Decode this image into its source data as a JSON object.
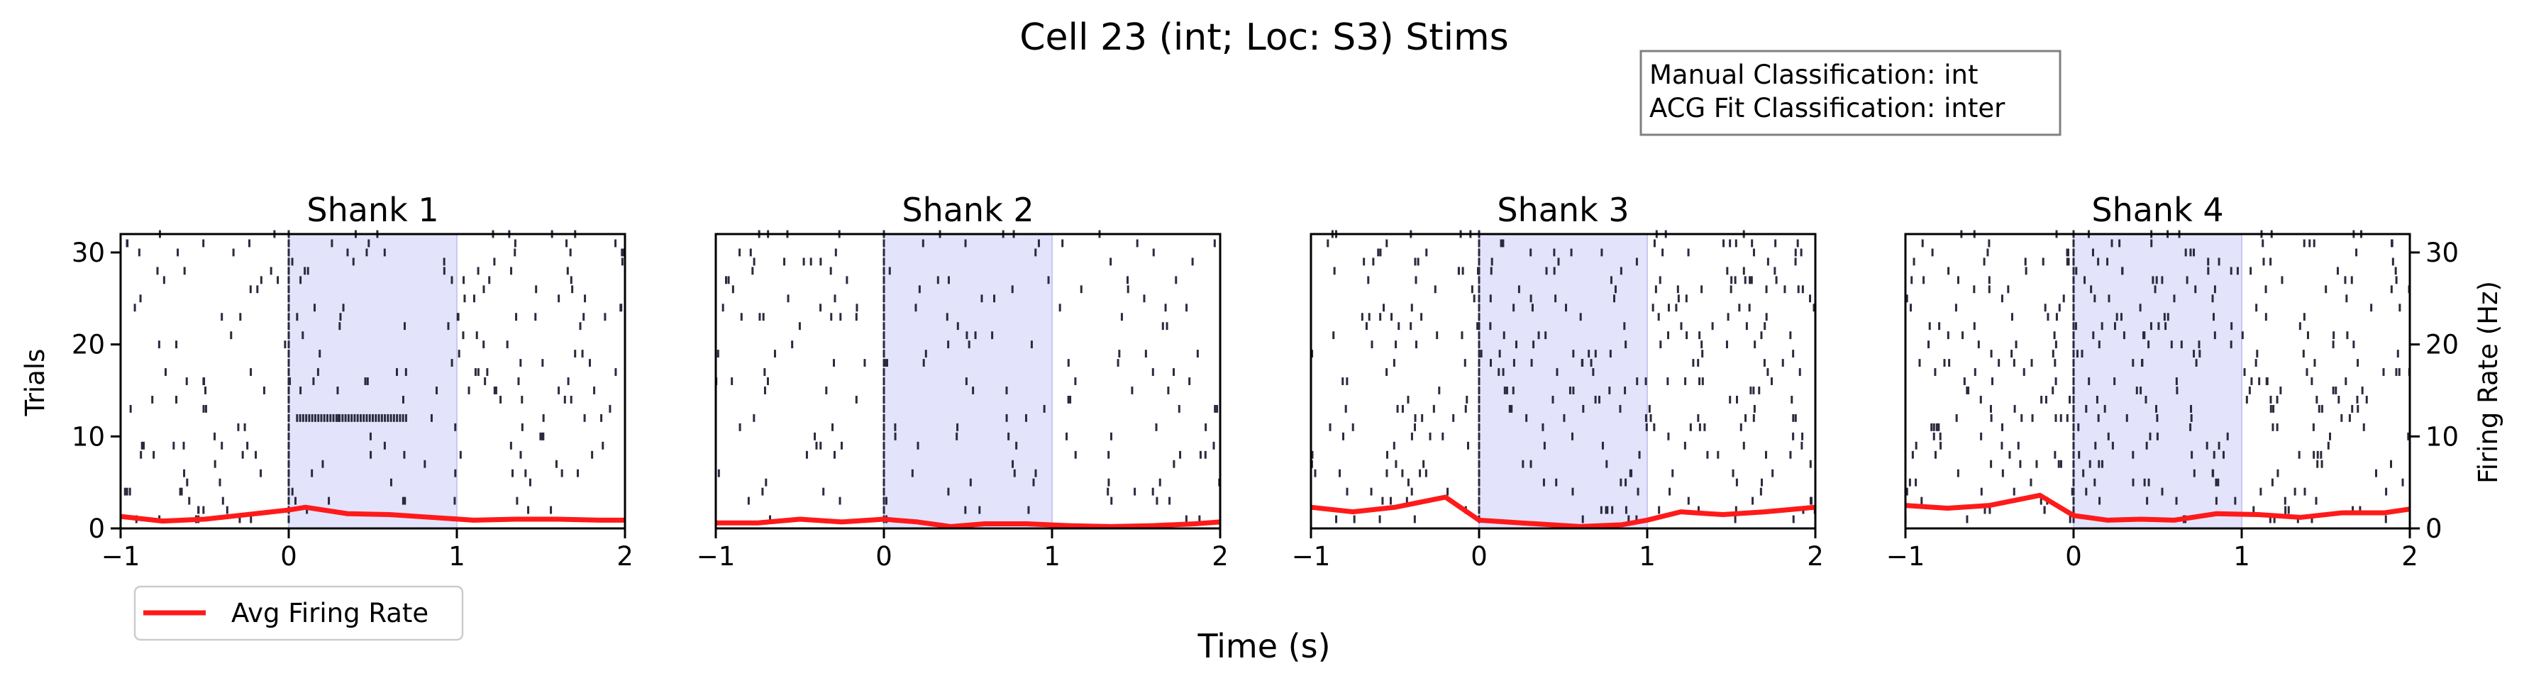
{
  "figure": {
    "suptitle": "Cell 23 (int; Loc: S3) Stims",
    "info_box": [
      "Manual Classification: int",
      "ACG Fit Classification: inter"
    ],
    "shared_xlabel": "Time (s)",
    "left_ylabel": "Trials",
    "right_ylabel": "Firing Rate (Hz)",
    "legend_label": "Avg Firing Rate",
    "line_color": "#ff1a1a",
    "spike_color": "#2a2a3e",
    "shade_color": "#e3e3fb"
  },
  "chart_data": [
    {
      "type": "raster",
      "title": "Shank 1",
      "xlim": [
        -1,
        2
      ],
      "ylim": [
        0,
        32
      ],
      "xticks": [
        -1,
        0,
        1,
        2
      ],
      "yticks": [
        0,
        10,
        20,
        30
      ],
      "stim_window": [
        0,
        1
      ],
      "n_trials": 32,
      "spike_density": 0.28,
      "burst": {
        "trial": 12,
        "t_start": 0.05,
        "t_end": 0.7
      },
      "rate_series": {
        "name": "Avg Firing Rate",
        "x": [
          -1,
          -0.75,
          -0.5,
          -0.25,
          0,
          0.1,
          0.35,
          0.6,
          0.85,
          1.1,
          1.35,
          1.6,
          1.85,
          2
        ],
        "y": [
          1.3,
          0.8,
          1.0,
          1.5,
          2.0,
          2.3,
          1.6,
          1.5,
          1.2,
          0.9,
          1.0,
          1.0,
          0.9,
          0.9
        ]
      }
    },
    {
      "type": "raster",
      "title": "Shank 2",
      "xlim": [
        -1,
        2
      ],
      "ylim": [
        0,
        32
      ],
      "xticks": [
        -1,
        0,
        1,
        2
      ],
      "yticks": [
        0,
        10,
        20,
        30
      ],
      "stim_window": [
        0,
        1
      ],
      "n_trials": 32,
      "spike_density": 0.17,
      "rate_series": {
        "name": "Avg Firing Rate",
        "x": [
          -1,
          -0.75,
          -0.5,
          -0.25,
          0,
          0.2,
          0.4,
          0.6,
          0.85,
          1.1,
          1.35,
          1.6,
          1.85,
          2
        ],
        "y": [
          0.6,
          0.6,
          1.0,
          0.7,
          1.0,
          0.7,
          0.2,
          0.5,
          0.5,
          0.3,
          0.2,
          0.3,
          0.5,
          0.7
        ]
      }
    },
    {
      "type": "raster",
      "title": "Shank 3",
      "xlim": [
        -1,
        2
      ],
      "ylim": [
        0,
        32
      ],
      "xticks": [
        -1,
        0,
        1,
        2
      ],
      "yticks": [
        0,
        10,
        20,
        30
      ],
      "stim_window": [
        0,
        1
      ],
      "n_trials": 32,
      "spike_density": 0.46,
      "rate_series": {
        "name": "Avg Firing Rate",
        "x": [
          -1,
          -0.75,
          -0.5,
          -0.2,
          0,
          0.25,
          0.6,
          0.85,
          1.0,
          1.2,
          1.45,
          1.7,
          2
        ],
        "y": [
          2.3,
          1.8,
          2.3,
          3.4,
          0.9,
          0.6,
          0.2,
          0.4,
          0.9,
          1.8,
          1.5,
          1.8,
          2.3
        ]
      }
    },
    {
      "type": "raster",
      "title": "Shank 4",
      "xlim": [
        -1,
        2
      ],
      "ylim": [
        0,
        32
      ],
      "xticks": [
        -1,
        0,
        1,
        2
      ],
      "yticks": [
        0,
        10,
        20,
        30
      ],
      "stim_window": [
        0,
        1
      ],
      "n_trials": 32,
      "spike_density": 0.55,
      "rate_series": {
        "name": "Avg Firing Rate",
        "x": [
          -1,
          -0.75,
          -0.5,
          -0.2,
          0,
          0.2,
          0.4,
          0.6,
          0.85,
          1.1,
          1.35,
          1.6,
          1.85,
          2
        ],
        "y": [
          2.5,
          2.2,
          2.5,
          3.6,
          1.4,
          0.9,
          1.0,
          0.9,
          1.6,
          1.5,
          1.2,
          1.7,
          1.7,
          2.1
        ]
      }
    }
  ]
}
